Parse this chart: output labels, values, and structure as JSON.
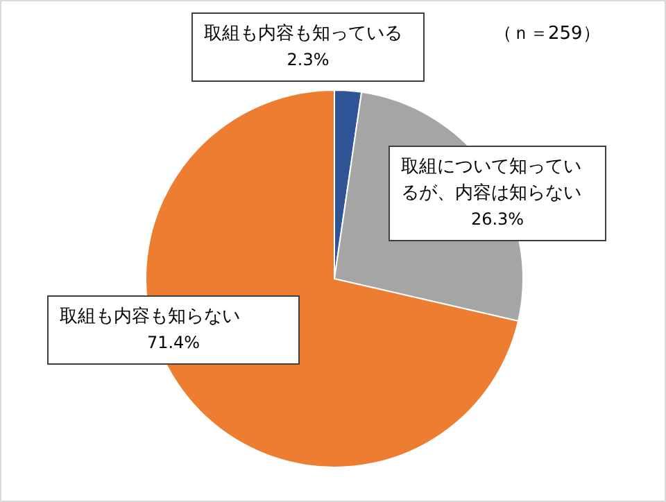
{
  "chart_data": {
    "type": "pie",
    "categories": [
      "取組も内容も知っている",
      "取組について知っているが、内容は知らない",
      "取組も内容も知らない"
    ],
    "values": [
      2.3,
      26.3,
      71.4
    ],
    "colors": [
      "#2f5597",
      "#a5a5a5",
      "#ed7d31"
    ],
    "value_labels": [
      "2.3%",
      "26.3%",
      "71.4%"
    ],
    "annotations": [
      "（ｎ＝259）"
    ]
  }
}
